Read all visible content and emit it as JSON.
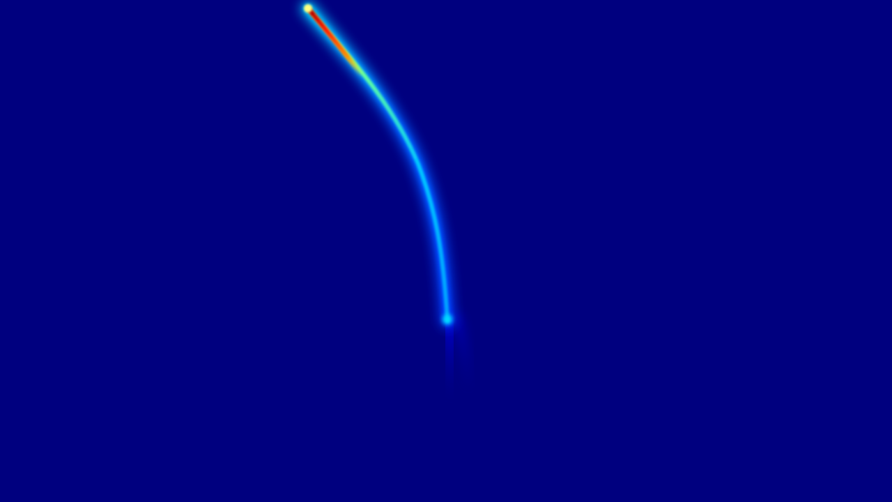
{
  "image": {
    "background_color": "#00007f",
    "colormap": [
      "#000080",
      "#0000ff",
      "#00bfff",
      "#40ffbf",
      "#ffff00",
      "#ff8000",
      "#ff0000",
      "#800000"
    ],
    "subject": "jet-colormap-heat-trace"
  }
}
